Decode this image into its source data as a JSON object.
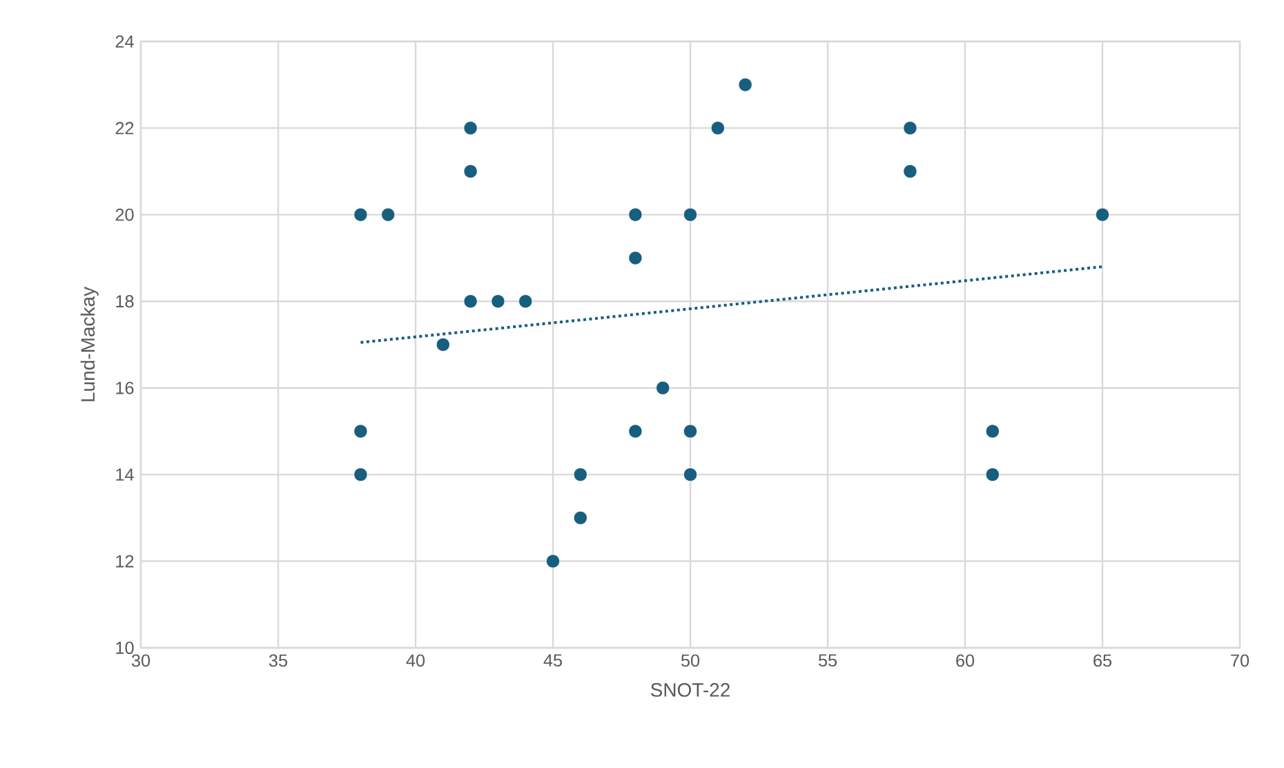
{
  "chart_data": {
    "type": "scatter",
    "xlabel": "SNOT-22",
    "ylabel": "Lund-Mackay",
    "xlim": [
      30,
      70
    ],
    "xticks": [
      30,
      35,
      40,
      45,
      50,
      55,
      60,
      65,
      70
    ],
    "ylim": [
      10,
      24
    ],
    "yticks": [
      10,
      12,
      14,
      16,
      18,
      20,
      22,
      24
    ],
    "grid": true,
    "series": [
      {
        "color": "#175e7f",
        "marker": "circle",
        "x": [
          38,
          39,
          38,
          38,
          42,
          42,
          42,
          43,
          44,
          41,
          45,
          46,
          46,
          48,
          48,
          48,
          49,
          50,
          50,
          50,
          51,
          52,
          58,
          58,
          61,
          61,
          65
        ],
        "values": [
          20,
          20,
          15,
          14,
          22,
          21,
          18,
          18,
          18,
          17,
          12,
          14,
          13,
          20,
          19,
          15,
          16,
          20,
          15,
          14,
          22,
          23,
          22,
          21,
          15,
          14,
          20
        ]
      },
      {
        "type": "line",
        "color": "#175e7f",
        "line_style": "dotted",
        "marker": "none",
        "x": [
          38,
          65
        ],
        "values": [
          17.05,
          18.8
        ]
      }
    ]
  }
}
